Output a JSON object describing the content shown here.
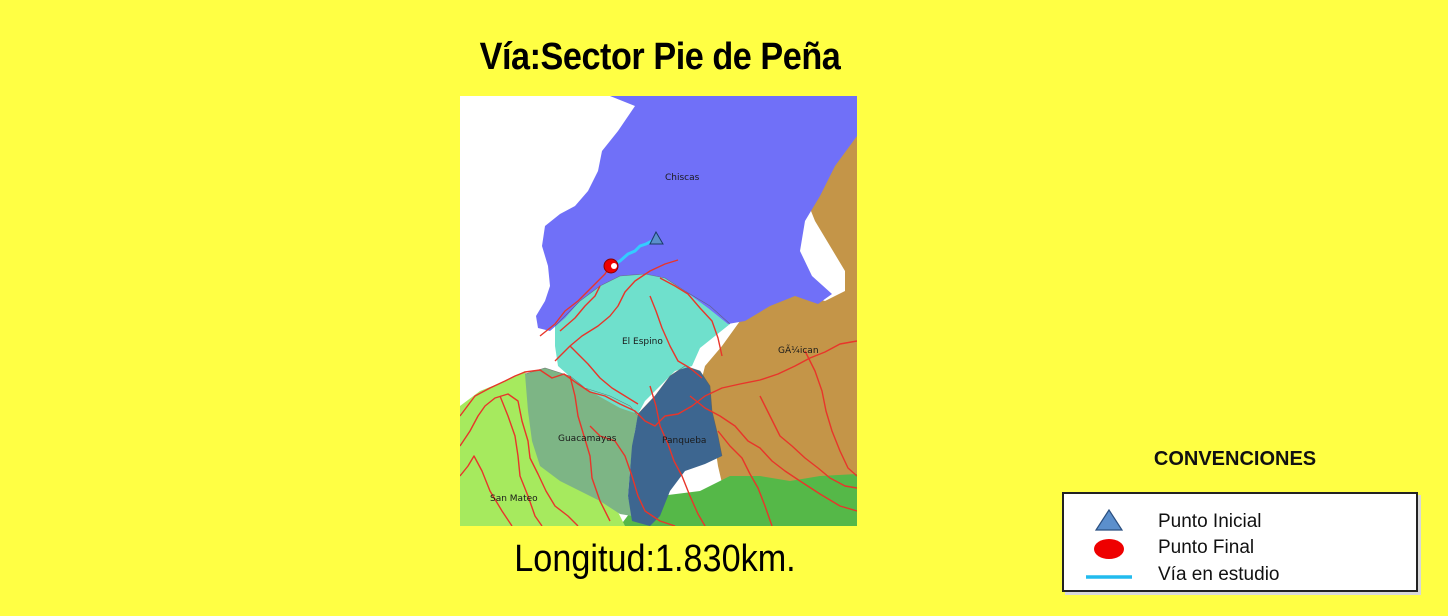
{
  "title": "Vía:Sector Pie de Peña",
  "length_text": "Longitud:1.830km.",
  "map": {
    "labels": {
      "chiscas": "Chiscas",
      "el_espino": "El Espino",
      "guican": "GÃ¼ican",
      "guacamayas": "Guacamayas",
      "panqueba": "Panqueba",
      "san_mateo": "San Mateo"
    },
    "colors": {
      "chiscas": "#7070f8",
      "el_espino": "#6fe0cc",
      "guican": "#c49548",
      "guacamayas": "#7db585",
      "panqueba": "#3d6690",
      "san_mateo": "#a6ea5e",
      "south_green": "#55b848",
      "roads": "#e8352a",
      "route": "#33ccff"
    }
  },
  "legend": {
    "title": "CONVENCIONES",
    "items": [
      {
        "label": "Punto Inicial",
        "icon": "triangle-icon",
        "color": "#5b8fcc"
      },
      {
        "label": "Punto Final",
        "icon": "red-dot-icon",
        "color": "#ee0000"
      },
      {
        "label": "Vía en estudio",
        "icon": "line-icon",
        "color": "#22bbee"
      }
    ]
  }
}
